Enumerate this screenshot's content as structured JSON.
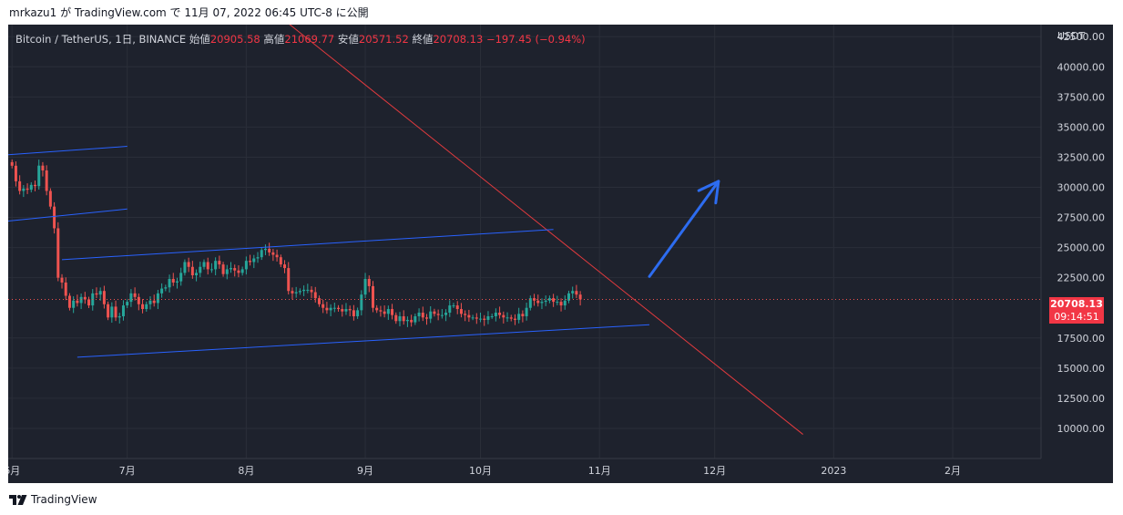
{
  "caption": {
    "user": "mrkazu1",
    "text": " が TradingView.com で 11月 07, 2022 06:45 UTC-8 に公開"
  },
  "legend": {
    "symbol": "Bitcoin / TetherUS, 1日, BINANCE",
    "open_label": "始値",
    "open": "20905.58",
    "high_label": "高値",
    "high": "21069.77",
    "low_label": "安値",
    "low": "20571.52",
    "close_label": "終値",
    "close": "20708.13",
    "change": "−197.45 (−0.94%)"
  },
  "price_tag": {
    "price": "20708.13",
    "countdown": "09:14:51"
  },
  "footer": {
    "brand": "TradingView",
    "logo_icon": "tradingview-logo-icon"
  },
  "colors": {
    "up": "#26a69a",
    "down": "#ef5350",
    "trend_red": "#e03a3e",
    "channel_blue": "#2962ff",
    "arrow_blue": "#2d6cf0",
    "background": "#1e222d"
  },
  "chart_data": {
    "type": "candlestick",
    "currency": "USDT",
    "ylim": [
      7500,
      43500
    ],
    "yticks": [
      "42500.00",
      "40000.00",
      "37500.00",
      "35000.00",
      "32500.00",
      "30000.00",
      "27500.00",
      "25000.00",
      "22500.00",
      "17500.00",
      "15000.00",
      "12500.00",
      "10000.00"
    ],
    "xticks": [
      {
        "label": "6月",
        "date": "2022-06-01"
      },
      {
        "label": "7月",
        "date": "2022-07-01"
      },
      {
        "label": "8月",
        "date": "2022-08-01"
      },
      {
        "label": "9月",
        "date": "2022-09-01"
      },
      {
        "label": "10月",
        "date": "2022-10-01"
      },
      {
        "label": "11月",
        "date": "2022-11-01"
      },
      {
        "label": "12月",
        "date": "2022-12-01"
      },
      {
        "label": "2023",
        "date": "2023-01-01"
      },
      {
        "label": "2月",
        "date": "2023-02-01"
      }
    ],
    "xlim": [
      "2022-05-31",
      "2023-02-24"
    ],
    "start_date": "2022-06-01",
    "close": [
      31790,
      30500,
      29700,
      29900,
      29800,
      30200,
      30100,
      31800,
      31400,
      29700,
      28400,
      26600,
      22500,
      22100,
      21000,
      20000,
      20600,
      20400,
      20900,
      20700,
      20200,
      21200,
      21100,
      21400,
      20300,
      19200,
      20100,
      19200,
      19300,
      20200,
      20500,
      21200,
      20900,
      20300,
      19900,
      20300,
      20600,
      20400,
      21200,
      21600,
      21700,
      22400,
      22100,
      22200,
      22900,
      23800,
      23400,
      22700,
      22900,
      23400,
      23800,
      23200,
      23200,
      23900,
      23600,
      22800,
      23200,
      23300,
      23100,
      22900,
      23200,
      23900,
      23800,
      24100,
      24200,
      24800,
      24900,
      24600,
      24400,
      24200,
      23600,
      23300,
      21400,
      21200,
      21300,
      21400,
      21500,
      21500,
      21300,
      20800,
      20300,
      20000,
      19800,
      20000,
      20000,
      19900,
      19700,
      19900,
      19800,
      19300,
      19800,
      21100,
      22400,
      21800,
      20000,
      19800,
      19700,
      19500,
      19900,
      19400,
      18900,
      19300,
      18900,
      19000,
      18800,
      19300,
      19600,
      19200,
      19100,
      19700,
      19500,
      19400,
      19400,
      19600,
      20200,
      20200,
      19900,
      19500,
      19400,
      19200,
      19200,
      19100,
      19100,
      19000,
      19300,
      19300,
      19600,
      19400,
      19200,
      19200,
      19100,
      19000,
      19500,
      19300,
      20000,
      20800,
      20600,
      20400,
      20500,
      20600,
      20800,
      20500,
      20500,
      20200,
      20600,
      21200,
      21400,
      21100,
      20700
    ],
    "annotations": [
      {
        "kind": "trendline",
        "color": "red",
        "from": {
          "date": "2022-08-10",
          "price": 44100
        },
        "to": {
          "date": "2022-12-24",
          "price": 9500
        }
      },
      {
        "kind": "channel_line",
        "color": "blue",
        "from": {
          "date": "2022-05-31",
          "price": 32700
        },
        "to": {
          "date": "2022-07-01",
          "price": 33400
        }
      },
      {
        "kind": "channel_line",
        "color": "blue",
        "from": {
          "date": "2022-05-31",
          "price": 27200
        },
        "to": {
          "date": "2022-07-01",
          "price": 28200
        }
      },
      {
        "kind": "channel_line",
        "color": "blue",
        "from": {
          "date": "2022-06-14",
          "price": 24000
        },
        "to": {
          "date": "2022-10-20",
          "price": 26500
        }
      },
      {
        "kind": "channel_line",
        "color": "blue",
        "from": {
          "date": "2022-06-18",
          "price": 15900
        },
        "to": {
          "date": "2022-11-14",
          "price": 18600
        }
      },
      {
        "kind": "arrow",
        "color": "blue",
        "from": {
          "date": "2022-11-14",
          "price": 22600
        },
        "to": {
          "date": "2022-12-02",
          "price": 30500
        }
      }
    ]
  }
}
